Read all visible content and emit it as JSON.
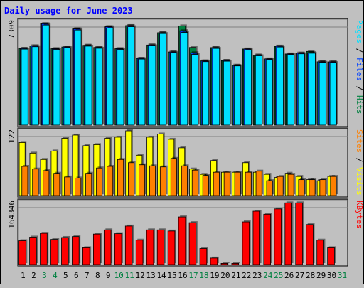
{
  "title": "Daily usage for June 2023",
  "colors": {
    "background": "#c0c0c0",
    "plot_bg": "#c0c0c0",
    "title": "#0000ff",
    "hits": "#008040",
    "files": "#0040ff",
    "pages": "#00e0ff",
    "visits": "#ffff00",
    "sites": "#ff8000",
    "kbytes": "#ff0000",
    "weekend_day": "#008040",
    "weekday_day": "#000000"
  },
  "chart_data": [
    {
      "type": "bar",
      "panel": "top",
      "ymax_label": "7309",
      "ylim": [
        0,
        7309
      ],
      "right_label": [
        {
          "text": "Pages",
          "color": "#00e0ff"
        },
        {
          "text": " / ",
          "color": "#000000"
        },
        {
          "text": "Files",
          "color": "#0040ff"
        },
        {
          "text": " / ",
          "color": "#000000"
        },
        {
          "text": "Hits",
          "color": "#008040"
        }
      ],
      "categories": [
        "1",
        "2",
        "3",
        "4",
        "5",
        "6",
        "7",
        "8",
        "9",
        "10",
        "11",
        "12",
        "13",
        "14",
        "15",
        "16",
        "17",
        "18",
        "19",
        "20",
        "21",
        "22",
        "23",
        "24",
        "25",
        "26",
        "27",
        "28",
        "29",
        "30",
        "31"
      ],
      "series": [
        {
          "name": "Hits",
          "values": [
            5400,
            5580,
            7140,
            5380,
            5500,
            6780,
            5620,
            5470,
            6930,
            5380,
            7010,
            4700,
            5640,
            6510,
            5150,
            6990,
            5470,
            4520,
            5460,
            4550,
            4220,
            5360,
            4930,
            4660,
            5560,
            5010,
            5070,
            5190,
            4460,
            4450,
            0
          ]
        },
        {
          "name": "Files",
          "values": [
            5400,
            5580,
            7140,
            5380,
            5500,
            6780,
            5620,
            5470,
            6930,
            5380,
            7010,
            4700,
            5640,
            6510,
            5150,
            6650,
            5100,
            4520,
            5460,
            4550,
            4200,
            5360,
            4930,
            4660,
            5560,
            5010,
            5070,
            5110,
            4460,
            4450,
            0
          ]
        },
        {
          "name": "Pages",
          "values": [
            5350,
            5520,
            7050,
            5330,
            5450,
            6700,
            5560,
            5410,
            6850,
            5330,
            6930,
            4650,
            5580,
            6450,
            5100,
            6530,
            4980,
            4470,
            5400,
            4500,
            4170,
            5300,
            4880,
            4610,
            5500,
            4960,
            5020,
            5060,
            4420,
            4400,
            0
          ]
        }
      ]
    },
    {
      "type": "bar",
      "panel": "middle",
      "ymax_label": "122",
      "ylim": [
        0,
        122
      ],
      "right_label": [
        {
          "text": "Sites",
          "color": "#ff8000"
        },
        {
          "text": " / ",
          "color": "#000000"
        },
        {
          "text": "Visits",
          "color": "#ffff00"
        }
      ],
      "categories": [
        "1",
        "2",
        "3",
        "4",
        "5",
        "6",
        "7",
        "8",
        "9",
        "10",
        "11",
        "12",
        "13",
        "14",
        "15",
        "16",
        "17",
        "18",
        "19",
        "20",
        "21",
        "22",
        "23",
        "24",
        "25",
        "26",
        "27",
        "28",
        "29",
        "30",
        "31"
      ],
      "series": [
        {
          "name": "Visits",
          "values": [
            100,
            80,
            68,
            84,
            108,
            114,
            94,
            96,
            108,
            110,
            122,
            76,
            110,
            116,
            106,
            90,
            50,
            40,
            66,
            44,
            44,
            62,
            44,
            40,
            34,
            42,
            36,
            30,
            28,
            36,
            0
          ]
        },
        {
          "name": "Sites",
          "values": [
            55,
            50,
            47,
            42,
            35,
            33,
            42,
            52,
            55,
            68,
            62,
            58,
            56,
            54,
            70,
            56,
            48,
            38,
            44,
            44,
            44,
            44,
            46,
            28,
            36,
            40,
            30,
            30,
            30,
            36,
            0
          ]
        }
      ]
    },
    {
      "type": "bar",
      "panel": "bottom",
      "ymax_label": "164346",
      "ylim": [
        0,
        164346
      ],
      "right_label": [
        {
          "text": "KBytes",
          "color": "#ff0000"
        }
      ],
      "categories": [
        "1",
        "2",
        "3",
        "4",
        "5",
        "6",
        "7",
        "8",
        "9",
        "10",
        "11",
        "12",
        "13",
        "14",
        "15",
        "16",
        "17",
        "18",
        "19",
        "20",
        "21",
        "22",
        "23",
        "24",
        "25",
        "26",
        "27",
        "28",
        "29",
        "30",
        "31"
      ],
      "series": [
        {
          "name": "KBytes",
          "values": [
            62500,
            72000,
            82000,
            66000,
            71000,
            73500,
            44000,
            80000,
            91000,
            81000,
            101000,
            64000,
            91000,
            91000,
            88000,
            125000,
            110000,
            42000,
            17000,
            3000,
            3000,
            112000,
            140000,
            132000,
            146000,
            162000,
            162000,
            105000,
            64000,
            44000,
            0
          ]
        }
      ]
    }
  ],
  "x_axis_days": [
    {
      "label": "1",
      "weekend": false
    },
    {
      "label": "2",
      "weekend": false
    },
    {
      "label": "3",
      "weekend": true
    },
    {
      "label": "4",
      "weekend": true
    },
    {
      "label": "5",
      "weekend": false
    },
    {
      "label": "6",
      "weekend": false
    },
    {
      "label": "7",
      "weekend": false
    },
    {
      "label": "8",
      "weekend": false
    },
    {
      "label": "9",
      "weekend": false
    },
    {
      "label": "10",
      "weekend": true
    },
    {
      "label": "11",
      "weekend": true
    },
    {
      "label": "12",
      "weekend": false
    },
    {
      "label": "13",
      "weekend": false
    },
    {
      "label": "14",
      "weekend": false
    },
    {
      "label": "15",
      "weekend": false
    },
    {
      "label": "16",
      "weekend": false
    },
    {
      "label": "17",
      "weekend": true
    },
    {
      "label": "18",
      "weekend": true
    },
    {
      "label": "19",
      "weekend": false
    },
    {
      "label": "20",
      "weekend": false
    },
    {
      "label": "21",
      "weekend": false
    },
    {
      "label": "22",
      "weekend": false
    },
    {
      "label": "23",
      "weekend": false
    },
    {
      "label": "24",
      "weekend": true
    },
    {
      "label": "25",
      "weekend": true
    },
    {
      "label": "26",
      "weekend": false
    },
    {
      "label": "27",
      "weekend": false
    },
    {
      "label": "28",
      "weekend": false
    },
    {
      "label": "29",
      "weekend": false
    },
    {
      "label": "30",
      "weekend": false
    },
    {
      "label": "31",
      "weekend": true
    }
  ]
}
